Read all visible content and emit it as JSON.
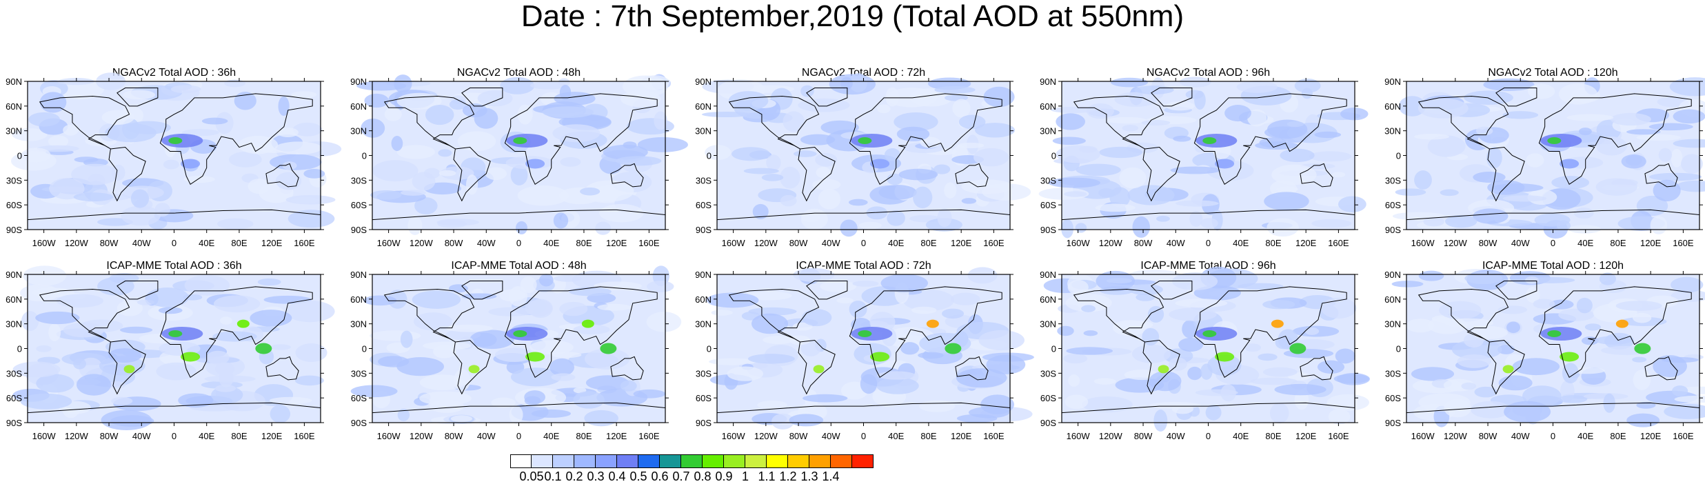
{
  "title": "Date : 7th September,2019 (Total AOD at 550nm)",
  "rows": [
    {
      "model": "NGACv2",
      "panels": [
        {
          "title": "NGACv2 Total AOD : 36h"
        },
        {
          "title": "NGACv2 Total AOD : 48h"
        },
        {
          "title": "NGACv2 Total AOD : 72h"
        },
        {
          "title": "NGACv2 Total AOD : 96h"
        },
        {
          "title": "NGACv2 Total AOD : 120h"
        }
      ]
    },
    {
      "model": "ICAP-MME",
      "panels": [
        {
          "title": "ICAP-MME Total AOD : 36h"
        },
        {
          "title": "ICAP-MME Total AOD : 48h"
        },
        {
          "title": "ICAP-MME Total AOD : 72h"
        },
        {
          "title": "ICAP-MME Total AOD : 96h"
        },
        {
          "title": "ICAP-MME Total AOD : 120h"
        }
      ]
    }
  ],
  "lat_ticks": [
    "90N",
    "60N",
    "30N",
    "0",
    "30S",
    "60S",
    "90S"
  ],
  "lon_ticks": [
    "160W",
    "120W",
    "80W",
    "40W",
    "0",
    "40E",
    "80E",
    "120E",
    "160E"
  ],
  "colorbar": {
    "labels": [
      "0.05",
      "0.1",
      "0.2",
      "0.3",
      "0.4",
      "0.5",
      "0.6",
      "0.7",
      "0.8",
      "0.9",
      "1",
      "1.1",
      "1.2",
      "1.3",
      "1.4"
    ],
    "colors": [
      "#ffffff",
      "#dce6ff",
      "#bdd0ff",
      "#9fb8ff",
      "#8aa2ff",
      "#6f7ff5",
      "#1f6bf0",
      "#169696",
      "#33cc33",
      "#66ee00",
      "#99ee22",
      "#ccf040",
      "#ffff00",
      "#ffcc00",
      "#ffa000",
      "#ff6600",
      "#ff2200"
    ]
  }
}
